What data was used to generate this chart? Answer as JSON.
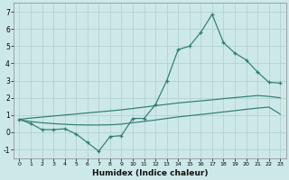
{
  "xlabel": "Humidex (Indice chaleur)",
  "x_values": [
    0,
    1,
    2,
    3,
    4,
    5,
    6,
    7,
    8,
    9,
    10,
    11,
    12,
    13,
    14,
    15,
    16,
    17,
    18,
    19,
    20,
    21,
    22,
    23
  ],
  "line_jagged": [
    0.75,
    0.5,
    0.15,
    0.15,
    0.2,
    -0.1,
    -0.6,
    -1.1,
    -0.25,
    -0.2,
    0.8,
    0.8,
    1.6,
    3.0,
    4.8,
    5.0,
    5.8,
    6.85,
    5.2,
    4.6,
    4.2,
    3.5,
    2.9,
    2.85
  ],
  "smooth_upper": [
    0.75,
    0.82,
    0.88,
    0.94,
    1.0,
    1.06,
    1.12,
    1.18,
    1.24,
    1.3,
    1.38,
    1.46,
    1.54,
    1.62,
    1.7,
    1.76,
    1.82,
    1.88,
    1.95,
    2.01,
    2.07,
    2.13,
    2.08,
    2.0
  ],
  "smooth_lower": [
    0.72,
    0.62,
    0.55,
    0.5,
    0.46,
    0.43,
    0.42,
    0.42,
    0.43,
    0.47,
    0.55,
    0.63,
    0.71,
    0.8,
    0.89,
    0.96,
    1.03,
    1.1,
    1.18,
    1.25,
    1.33,
    1.4,
    1.46,
    1.05
  ],
  "ylim": [
    -1.5,
    7.5
  ],
  "xlim": [
    -0.5,
    23.5
  ],
  "yticks": [
    -1,
    0,
    1,
    2,
    3,
    4,
    5,
    6,
    7
  ],
  "xticks": [
    0,
    1,
    2,
    3,
    4,
    5,
    6,
    7,
    8,
    9,
    10,
    11,
    12,
    13,
    14,
    15,
    16,
    17,
    18,
    19,
    20,
    21,
    22,
    23
  ],
  "line_color": "#2e7d6e",
  "bg_color": "#cde8e8",
  "grid_color": "#b0cccc"
}
